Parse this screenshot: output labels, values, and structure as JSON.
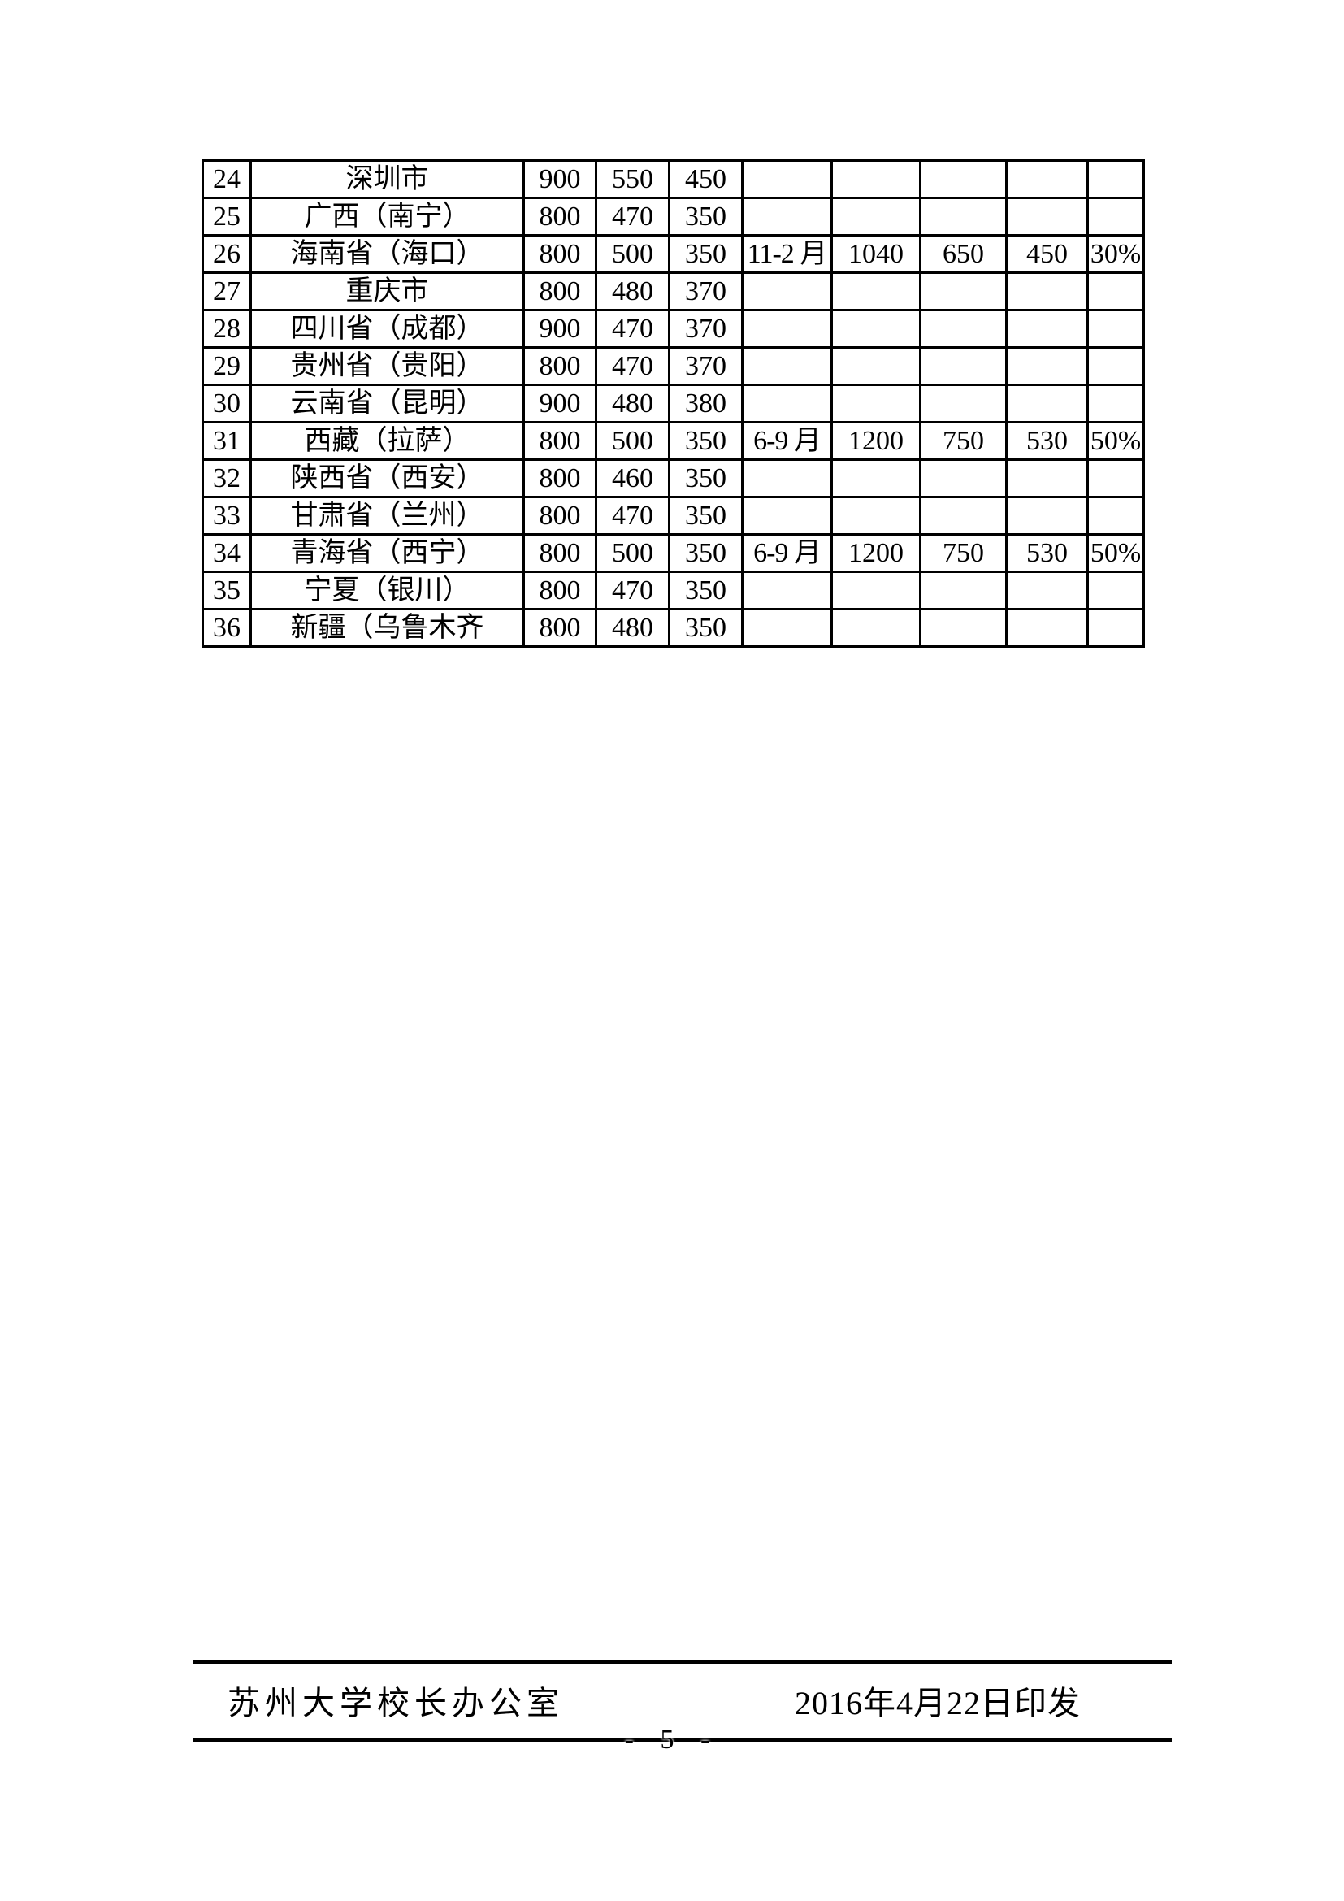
{
  "colors": {
    "ink": "#000000",
    "paper": "#ffffff"
  },
  "table": {
    "rows": [
      {
        "num": "24",
        "name": "深圳市",
        "v1": "900",
        "v2": "550",
        "v3": "450",
        "month": "",
        "p1": "",
        "p2": "",
        "p3": "",
        "pct": ""
      },
      {
        "num": "25",
        "name": "广西（南宁）",
        "v1": "800",
        "v2": "470",
        "v3": "350",
        "month": "",
        "p1": "",
        "p2": "",
        "p3": "",
        "pct": ""
      },
      {
        "num": "26",
        "name": "海南省（海口）",
        "v1": "800",
        "v2": "500",
        "v3": "350",
        "month": "11-2 月",
        "p1": "1040",
        "p2": "650",
        "p3": "450",
        "pct": "30%"
      },
      {
        "num": "27",
        "name": "重庆市",
        "v1": "800",
        "v2": "480",
        "v3": "370",
        "month": "",
        "p1": "",
        "p2": "",
        "p3": "",
        "pct": ""
      },
      {
        "num": "28",
        "name": "四川省（成都）",
        "v1": "900",
        "v2": "470",
        "v3": "370",
        "month": "",
        "p1": "",
        "p2": "",
        "p3": "",
        "pct": ""
      },
      {
        "num": "29",
        "name": "贵州省（贵阳）",
        "v1": "800",
        "v2": "470",
        "v3": "370",
        "month": "",
        "p1": "",
        "p2": "",
        "p3": "",
        "pct": ""
      },
      {
        "num": "30",
        "name": "云南省（昆明）",
        "v1": "900",
        "v2": "480",
        "v3": "380",
        "month": "",
        "p1": "",
        "p2": "",
        "p3": "",
        "pct": ""
      },
      {
        "num": "31",
        "name": "西藏（拉萨）",
        "v1": "800",
        "v2": "500",
        "v3": "350",
        "month": "6-9 月",
        "p1": "1200",
        "p2": "750",
        "p3": "530",
        "pct": "50%"
      },
      {
        "num": "32",
        "name": "陕西省（西安）",
        "v1": "800",
        "v2": "460",
        "v3": "350",
        "month": "",
        "p1": "",
        "p2": "",
        "p3": "",
        "pct": ""
      },
      {
        "num": "33",
        "name": "甘肃省（兰州）",
        "v1": "800",
        "v2": "470",
        "v3": "350",
        "month": "",
        "p1": "",
        "p2": "",
        "p3": "",
        "pct": ""
      },
      {
        "num": "34",
        "name": "青海省（西宁）",
        "v1": "800",
        "v2": "500",
        "v3": "350",
        "month": "6-9 月",
        "p1": "1200",
        "p2": "750",
        "p3": "530",
        "pct": "50%"
      },
      {
        "num": "35",
        "name": "宁夏（银川）",
        "v1": "800",
        "v2": "470",
        "v3": "350",
        "month": "",
        "p1": "",
        "p2": "",
        "p3": "",
        "pct": ""
      },
      {
        "num": "36",
        "name": "新疆（乌鲁木齐",
        "v1": "800",
        "v2": "480",
        "v3": "350",
        "month": "",
        "p1": "",
        "p2": "",
        "p3": "",
        "pct": ""
      }
    ]
  },
  "footer": {
    "office": "苏州大学校长办公室",
    "date": "2016年4月22日印发",
    "page_number": "- 5 -"
  }
}
